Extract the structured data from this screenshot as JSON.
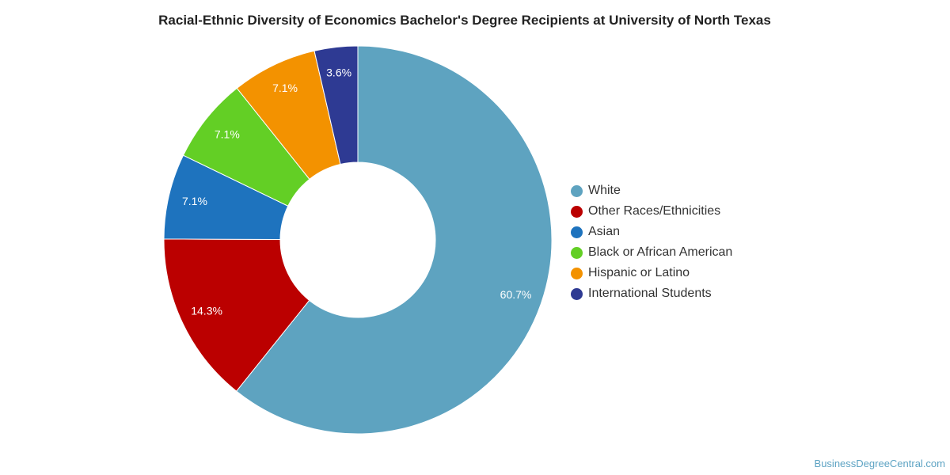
{
  "chart_data": {
    "type": "pie",
    "variant": "donut",
    "title": "Racial-Ethnic Diversity of Economics Bachelor's Degree Recipients at University of North Texas",
    "legend_position": "right",
    "slices": [
      {
        "name": "White",
        "value": 60.7,
        "label": "60.7%",
        "color": "#5ea3c0"
      },
      {
        "name": "Other Races/Ethnicities",
        "value": 14.3,
        "label": "14.3%",
        "color": "#bb0000"
      },
      {
        "name": "Asian",
        "value": 7.1,
        "label": "7.1%",
        "color": "#1e73be"
      },
      {
        "name": "Black or African American",
        "value": 7.1,
        "label": "7.1%",
        "color": "#63cf25"
      },
      {
        "name": "Hispanic or Latino",
        "value": 7.1,
        "label": "7.1%",
        "color": "#f39200"
      },
      {
        "name": "International Students",
        "value": 3.6,
        "label": "3.6%",
        "color": "#2e3a93"
      }
    ]
  },
  "source": "BusinessDegreeCentral.com"
}
